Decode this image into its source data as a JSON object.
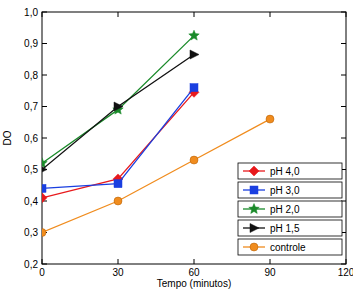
{
  "chart_data": {
    "type": "line",
    "x_label": "Tempo (minutos)",
    "y_label": "DO",
    "x": [
      0,
      30,
      60,
      90
    ],
    "series": [
      {
        "name": "pH 4,0",
        "color": "#e8191c",
        "marker": "diamond",
        "values": [
          0.41,
          0.47,
          0.745,
          null
        ]
      },
      {
        "name": "pH 3,0",
        "color": "#1a3fe0",
        "marker": "square",
        "values": [
          0.44,
          0.455,
          0.76,
          null
        ]
      },
      {
        "name": "pH 2,0",
        "color": "#1a8a2a",
        "marker": "star",
        "values": [
          0.52,
          0.69,
          0.925,
          null
        ]
      },
      {
        "name": "pH 1,5",
        "color": "#111111",
        "marker": "triangle-right",
        "values": [
          0.5,
          0.7,
          0.865,
          null
        ]
      },
      {
        "name": "controle",
        "color": "#f08c1e",
        "marker": "circle",
        "values": [
          0.3,
          0.4,
          0.53,
          0.66
        ]
      }
    ],
    "xlim": [
      0,
      120
    ],
    "xticks": [
      0,
      30,
      60,
      90,
      120
    ],
    "ylim": [
      0.2,
      1.0
    ],
    "yticks": [
      {
        "value": 0.2,
        "label": "0,2"
      },
      {
        "value": 0.3,
        "label": "0,3"
      },
      {
        "value": 0.4,
        "label": "0,4"
      },
      {
        "value": 0.5,
        "label": "0,5"
      },
      {
        "value": 0.6,
        "label": "0,6"
      },
      {
        "value": 0.7,
        "label": "0,7"
      },
      {
        "value": 0.8,
        "label": "0,8"
      },
      {
        "value": 0.9,
        "label": "0,9"
      },
      {
        "value": 1.0,
        "label": "1,0"
      }
    ],
    "legend": "lower-right",
    "grid": false
  }
}
